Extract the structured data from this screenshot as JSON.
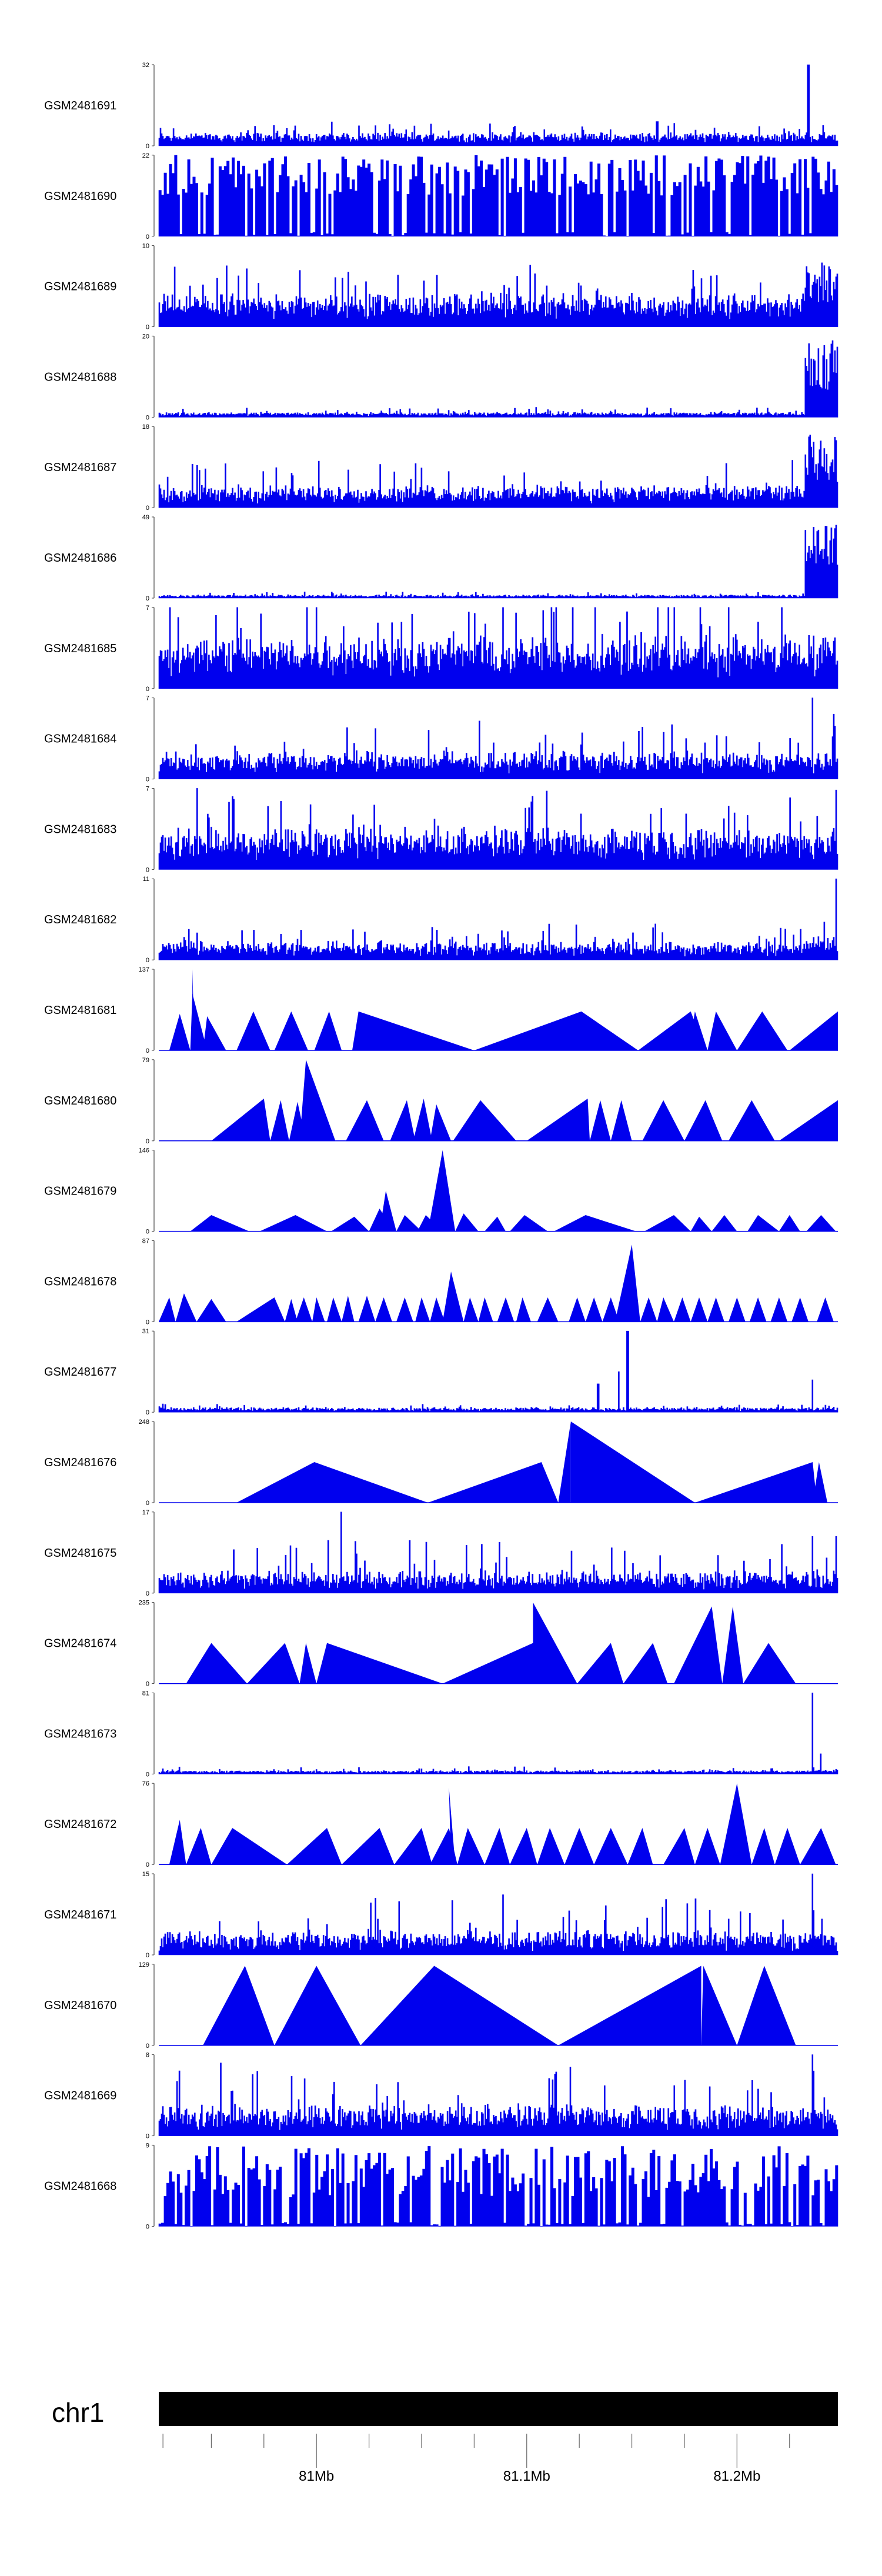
{
  "colors": {
    "signal": "#0000ee",
    "ideogram": "#000000",
    "axis": "#000000"
  },
  "chart_data": {
    "type": "area",
    "title": "",
    "xlabel": "",
    "ylabel": "",
    "chromosome": "chr1",
    "xlim_mb": [
      80.925,
      81.248
    ],
    "x_ticks": [
      {
        "pos": 81.0,
        "label": "81Mb"
      },
      {
        "pos": 81.1,
        "label": "81.1Mb"
      },
      {
        "pos": 81.2,
        "label": "81.2Mb"
      }
    ],
    "x_minor_ticks": [
      80.927,
      80.95,
      80.975,
      81.025,
      81.05,
      81.075,
      81.125,
      81.15,
      81.175,
      81.225
    ],
    "tracks": [
      {
        "name": "GSM2481691",
        "ymax": 32,
        "style": "dense",
        "base": 0.09,
        "noise": 0.1,
        "peaks": [
          [
            81.162,
            0.3
          ],
          [
            81.234,
            1.0
          ]
        ],
        "tail": 0
      },
      {
        "name": "GSM2481690",
        "ymax": 22,
        "style": "comb",
        "base": 0.5,
        "noise": 0.5,
        "peaks": [],
        "tail": 0
      },
      {
        "name": "GSM2481689",
        "ymax": 10,
        "style": "dense",
        "base": 0.2,
        "noise": 0.3,
        "peaks": [],
        "tail": 0.8
      },
      {
        "name": "GSM2481688",
        "ymax": 20,
        "style": "dense",
        "base": 0.03,
        "noise": 0.05,
        "peaks": [],
        "tail": 0.95
      },
      {
        "name": "GSM2481687",
        "ymax": 18,
        "style": "dense",
        "base": 0.12,
        "noise": 0.25,
        "peaks": [],
        "tail": 0.9
      },
      {
        "name": "GSM2481686",
        "ymax": 49,
        "style": "dense",
        "base": 0.02,
        "noise": 0.03,
        "peaks": [],
        "tail": 0.9
      },
      {
        "name": "GSM2481685",
        "ymax": 7,
        "style": "dense",
        "base": 0.3,
        "noise": 0.55,
        "peaks": [],
        "tail": 0
      },
      {
        "name": "GSM2481684",
        "ymax": 7,
        "style": "dense",
        "base": 0.15,
        "noise": 0.3,
        "peaks": [
          [
            81.236,
            1.0
          ],
          [
            81.246,
            0.8
          ]
        ],
        "tail": 0
      },
      {
        "name": "GSM2481683",
        "ymax": 7,
        "style": "dense",
        "base": 0.25,
        "noise": 0.4,
        "peaks": [
          [
            80.96,
            0.9
          ],
          [
            81.247,
            0.85
          ]
        ],
        "tail": 0
      },
      {
        "name": "GSM2481682",
        "ymax": 11,
        "style": "dense",
        "base": 0.1,
        "noise": 0.2,
        "peaks": [
          [
            81.247,
            1.0
          ]
        ],
        "tail": 0.3
      },
      {
        "name": "GSM2481681",
        "ymax": 137,
        "style": "tri",
        "tri": [
          [
            80.93,
            80.935,
            80.94,
            0.45
          ],
          [
            80.94,
            80.941,
            80.948,
            0.7
          ],
          [
            80.943,
            80.941,
            80.946,
            0.0
          ],
          [
            80.942,
            80.942,
            80.942,
            0.0
          ],
          [
            80.941,
            80.941,
            80.942,
            1.0
          ],
          [
            80.946,
            80.948,
            80.957,
            0.42
          ],
          [
            80.962,
            80.97,
            80.978,
            0.48
          ],
          [
            80.98,
            80.988,
            80.996,
            0.48
          ],
          [
            80.999,
            81.006,
            81.012,
            0.48
          ],
          [
            81.017,
            81.02,
            81.075,
            0.48
          ],
          [
            81.075,
            81.126,
            81.153,
            0.48
          ],
          [
            81.153,
            81.178,
            81.185,
            0.48
          ],
          [
            81.186,
            81.19,
            81.2,
            0.48
          ],
          [
            81.2,
            81.212,
            81.224,
            0.48
          ],
          [
            81.225,
            81.248,
            81.248,
            0.48
          ],
          [
            81.177,
            81.18,
            81.186,
            0.48
          ]
        ]
      },
      {
        "name": "GSM2481680",
        "ymax": 79,
        "style": "tri",
        "tri": [
          [
            80.95,
            80.975,
            80.978,
            0.52
          ],
          [
            80.978,
            80.983,
            80.987,
            0.5
          ],
          [
            80.987,
            80.991,
            80.995,
            0.48
          ],
          [
            80.992,
            80.995,
            81.009,
            1.0
          ],
          [
            81.014,
            81.024,
            81.032,
            0.5
          ],
          [
            81.035,
            81.043,
            81.047,
            0.5
          ],
          [
            81.046,
            81.051,
            81.055,
            0.52
          ],
          [
            81.054,
            81.057,
            81.064,
            0.45
          ],
          [
            81.065,
            81.078,
            81.095,
            0.5
          ],
          [
            81.1,
            81.129,
            81.13,
            0.52
          ],
          [
            81.13,
            81.135,
            81.14,
            0.5
          ],
          [
            81.14,
            81.145,
            81.15,
            0.5
          ],
          [
            81.155,
            81.165,
            81.175,
            0.5
          ],
          [
            81.175,
            81.185,
            81.193,
            0.5
          ],
          [
            81.196,
            81.207,
            81.218,
            0.5
          ],
          [
            81.22,
            81.248,
            81.248,
            0.5
          ]
        ]
      },
      {
        "name": "GSM2481679",
        "ymax": 146,
        "style": "tri",
        "tri": [
          [
            80.94,
            80.95,
            80.968,
            0.2
          ],
          [
            80.973,
            80.99,
            81.005,
            0.2
          ],
          [
            81.007,
            81.018,
            81.025,
            0.18
          ],
          [
            81.025,
            81.03,
            81.037,
            0.28
          ],
          [
            81.03,
            81.033,
            81.038,
            0.5
          ],
          [
            81.038,
            81.042,
            81.05,
            0.2
          ],
          [
            81.048,
            81.052,
            81.06,
            0.2
          ],
          [
            81.053,
            81.06,
            81.066,
            1.0
          ],
          [
            81.066,
            81.07,
            81.077,
            0.22
          ],
          [
            81.08,
            81.086,
            81.09,
            0.18
          ],
          [
            81.092,
            81.099,
            81.11,
            0.2
          ],
          [
            81.113,
            81.128,
            81.152,
            0.2
          ],
          [
            81.156,
            81.17,
            81.178,
            0.2
          ],
          [
            81.178,
            81.182,
            81.188,
            0.18
          ],
          [
            81.188,
            81.194,
            81.2,
            0.2
          ],
          [
            81.205,
            81.21,
            81.22,
            0.2
          ],
          [
            81.22,
            81.225,
            81.23,
            0.2
          ],
          [
            81.233,
            81.24,
            81.247,
            0.2
          ]
        ]
      },
      {
        "name": "GSM2481678",
        "ymax": 87,
        "style": "tri",
        "tri": [
          [
            80.925,
            80.93,
            80.933,
            0.3
          ],
          [
            80.933,
            80.937,
            80.943,
            0.35
          ],
          [
            80.943,
            80.95,
            80.957,
            0.28
          ],
          [
            80.962,
            80.98,
            80.985,
            0.3
          ],
          [
            80.985,
            80.988,
            80.991,
            0.28
          ],
          [
            80.99,
            80.994,
            80.998,
            0.3
          ],
          [
            80.998,
            81.0,
            81.004,
            0.3
          ],
          [
            81.005,
            81.008,
            81.012,
            0.3
          ],
          [
            81.012,
            81.015,
            81.018,
            0.32
          ],
          [
            81.02,
            81.024,
            81.028,
            0.32
          ],
          [
            81.028,
            81.032,
            81.036,
            0.3
          ],
          [
            81.038,
            81.042,
            81.046,
            0.3
          ],
          [
            81.047,
            81.05,
            81.054,
            0.3
          ],
          [
            81.054,
            81.057,
            81.061,
            0.3
          ],
          [
            81.06,
            81.064,
            81.07,
            0.62
          ],
          [
            81.07,
            81.073,
            81.077,
            0.3
          ],
          [
            81.077,
            81.08,
            81.084,
            0.3
          ],
          [
            81.086,
            81.09,
            81.094,
            0.3
          ],
          [
            81.095,
            81.098,
            81.102,
            0.3
          ],
          [
            81.105,
            81.11,
            81.115,
            0.3
          ],
          [
            81.12,
            81.124,
            81.128,
            0.3
          ],
          [
            81.128,
            81.132,
            81.136,
            0.3
          ],
          [
            81.136,
            81.14,
            81.144,
            0.3
          ],
          [
            81.142,
            81.15,
            81.154,
            0.95
          ],
          [
            81.154,
            81.158,
            81.162,
            0.3
          ],
          [
            81.162,
            81.165,
            81.17,
            0.3
          ],
          [
            81.17,
            81.174,
            81.178,
            0.3
          ],
          [
            81.178,
            81.182,
            81.186,
            0.3
          ],
          [
            81.186,
            81.19,
            81.194,
            0.3
          ],
          [
            81.196,
            81.2,
            81.204,
            0.3
          ],
          [
            81.206,
            81.21,
            81.214,
            0.3
          ],
          [
            81.216,
            81.22,
            81.224,
            0.3
          ],
          [
            81.226,
            81.23,
            81.234,
            0.3
          ],
          [
            81.238,
            81.242,
            81.246,
            0.3
          ]
        ]
      },
      {
        "name": "GSM2481677",
        "ymax": 31,
        "style": "dense",
        "base": 0.03,
        "noise": 0.04,
        "peaks": [
          [
            81.134,
            0.35
          ],
          [
            81.144,
            0.5
          ],
          [
            81.148,
            1.0
          ],
          [
            81.236,
            0.4
          ]
        ],
        "tail": 0
      },
      {
        "name": "GSM2481676",
        "ymax": 248,
        "style": "tri",
        "tri": [
          [
            80.962,
            80.999,
            81.053,
            0.5
          ],
          [
            81.053,
            81.107,
            81.115,
            0.5
          ],
          [
            81.115,
            81.121,
            81.121,
            1.0
          ],
          [
            81.121,
            81.121,
            81.18,
            1.0
          ],
          [
            81.18,
            81.236,
            81.238,
            0.5
          ],
          [
            81.236,
            81.239,
            81.243,
            0.5
          ]
        ]
      },
      {
        "name": "GSM2481675",
        "ymax": 17,
        "style": "dense",
        "base": 0.1,
        "noise": 0.3,
        "peaks": [
          [
            81.012,
            1.0
          ],
          [
            81.236,
            0.7
          ],
          [
            81.247,
            0.7
          ]
        ],
        "tail": 0
      },
      {
        "name": "GSM2481674",
        "ymax": 235,
        "style": "tri",
        "tri": [
          [
            80.938,
            80.95,
            80.967,
            0.5
          ],
          [
            80.967,
            80.985,
            80.992,
            0.5
          ],
          [
            80.992,
            80.995,
            81.0,
            0.5
          ],
          [
            81.0,
            81.005,
            81.06,
            0.5
          ],
          [
            81.06,
            81.103,
            81.12,
            0.5
          ],
          [
            81.103,
            81.103,
            81.103,
            1.0
          ],
          [
            81.103,
            81.103,
            81.124,
            1.0
          ],
          [
            81.124,
            81.14,
            81.146,
            0.5
          ],
          [
            81.146,
            81.16,
            81.167,
            0.5
          ],
          [
            81.17,
            81.188,
            81.193,
            0.95
          ],
          [
            81.193,
            81.198,
            81.203,
            0.95
          ],
          [
            81.203,
            81.215,
            81.228,
            0.5
          ]
        ]
      },
      {
        "name": "GSM2481673",
        "ymax": 81,
        "style": "dense",
        "base": 0.02,
        "noise": 0.04,
        "peaks": [
          [
            81.236,
            1.0
          ],
          [
            81.24,
            0.25
          ]
        ],
        "tail": 0.05
      },
      {
        "name": "GSM2481672",
        "ymax": 76,
        "style": "tri",
        "tri": [
          [
            80.93,
            80.935,
            80.938,
            0.55
          ],
          [
            80.938,
            80.945,
            80.95,
            0.45
          ],
          [
            80.95,
            80.96,
            80.986,
            0.45
          ],
          [
            80.986,
            81.005,
            81.012,
            0.45
          ],
          [
            81.012,
            81.03,
            81.037,
            0.45
          ],
          [
            81.037,
            81.05,
            81.055,
            0.45
          ],
          [
            81.054,
            81.063,
            81.067,
            0.45
          ],
          [
            81.064,
            81.063,
            81.066,
            0.95
          ],
          [
            81.067,
            81.072,
            81.08,
            0.45
          ],
          [
            81.08,
            81.087,
            81.092,
            0.45
          ],
          [
            81.092,
            81.1,
            81.105,
            0.45
          ],
          [
            81.105,
            81.111,
            81.118,
            0.45
          ],
          [
            81.118,
            81.125,
            81.132,
            0.45
          ],
          [
            81.132,
            81.14,
            81.148,
            0.45
          ],
          [
            81.148,
            81.155,
            81.16,
            0.45
          ],
          [
            81.165,
            81.175,
            81.18,
            0.45
          ],
          [
            81.18,
            81.186,
            81.192,
            0.45
          ],
          [
            81.192,
            81.2,
            81.207,
            1.0
          ],
          [
            81.207,
            81.213,
            81.218,
            0.45
          ],
          [
            81.218,
            81.224,
            81.23,
            0.45
          ],
          [
            81.23,
            81.24,
            81.247,
            0.45
          ]
        ]
      },
      {
        "name": "GSM2481671",
        "ymax": 15,
        "style": "dense",
        "base": 0.1,
        "noise": 0.35,
        "peaks": [
          [
            81.236,
            1.0
          ],
          [
            81.028,
            0.7
          ]
        ],
        "tail": 0
      },
      {
        "name": "GSM2481670",
        "ymax": 129,
        "style": "tri",
        "tri": [
          [
            80.946,
            80.966,
            80.98,
            0.98
          ],
          [
            80.98,
            81.0,
            81.021,
            0.98
          ],
          [
            81.021,
            81.056,
            81.115,
            0.98
          ],
          [
            81.115,
            81.183,
            81.183,
            0.98
          ],
          [
            81.183,
            81.184,
            81.2,
            0.98
          ],
          [
            81.2,
            81.213,
            81.228,
            0.98
          ]
        ]
      },
      {
        "name": "GSM2481669",
        "ymax": 8,
        "style": "dense",
        "base": 0.15,
        "noise": 0.4,
        "peaks": [
          [
            81.236,
            1.0
          ]
        ],
        "tail": 0
      },
      {
        "name": "GSM2481668",
        "ymax": 9,
        "style": "comb",
        "base": 0.35,
        "noise": 0.55,
        "peaks": [],
        "tail": 0
      }
    ]
  }
}
